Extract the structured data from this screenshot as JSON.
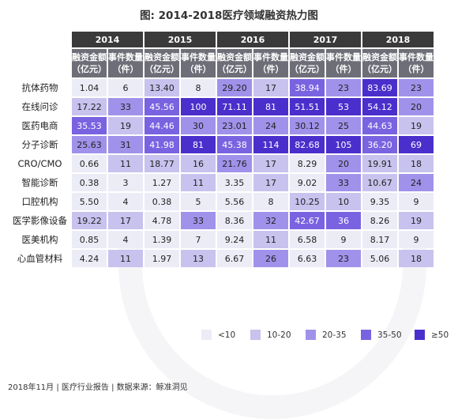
{
  "title": "图: 2014-2018医疗领域融资热力图",
  "footer": "2018年11月 | 医疗行业报告 | 数据来源：鲸准洞见",
  "colors": [
    "#ececf7",
    "#c8c2ee",
    "#a092ea",
    "#7a63e1",
    "#4b2fcc"
  ],
  "legend": [
    {
      "label": "<10",
      "color": "#ececf7"
    },
    {
      "label": "10-20",
      "color": "#c8c2ee"
    },
    {
      "label": "20-35",
      "color": "#a092ea"
    },
    {
      "label": "35-50",
      "color": "#7a63e1"
    },
    {
      "label": "≥50",
      "color": "#4b2fcc"
    }
  ],
  "chart_data": {
    "type": "heatmap",
    "title": "图: 2014-2018医疗领域融资热力图",
    "years": [
      "2014",
      "2015",
      "2016",
      "2017",
      "2018"
    ],
    "metrics": [
      "融资金额（亿元）",
      "事件数量（件）"
    ],
    "column_header_lines": [
      [
        "融资金额",
        "（亿元）"
      ],
      [
        "事件数量",
        "（件）"
      ]
    ],
    "categories": [
      "抗体药物",
      "在线问诊",
      "医药电商",
      "分子诊断",
      "CRO/CMO",
      "智能诊断",
      "口腔机构",
      "医学影像设备",
      "医美机构",
      "心血管材料"
    ],
    "rows": [
      [
        [
          "1.04",
          "6"
        ],
        [
          "13.40",
          "8"
        ],
        [
          "29.20",
          "17"
        ],
        [
          "38.94",
          "23"
        ],
        [
          "83.69",
          "23"
        ]
      ],
      [
        [
          "17.22",
          "33"
        ],
        [
          "45.56",
          "100"
        ],
        [
          "71.11",
          "81"
        ],
        [
          "51.51",
          "53"
        ],
        [
          "54.12",
          "20"
        ]
      ],
      [
        [
          "35.53",
          "19"
        ],
        [
          "44.46",
          "30"
        ],
        [
          "23.01",
          "24"
        ],
        [
          "30.12",
          "25"
        ],
        [
          "44.63",
          "19"
        ]
      ],
      [
        [
          "25.63",
          "31"
        ],
        [
          "41.98",
          "81"
        ],
        [
          "45.38",
          "114"
        ],
        [
          "82.68",
          "105"
        ],
        [
          "36.20",
          "69"
        ]
      ],
      [
        [
          "0.66",
          "11"
        ],
        [
          "18.77",
          "16"
        ],
        [
          "21.76",
          "17"
        ],
        [
          "8.29",
          "20"
        ],
        [
          "19.91",
          "18"
        ]
      ],
      [
        [
          "0.38",
          "3"
        ],
        [
          "1.27",
          "11"
        ],
        [
          "3.35",
          "17"
        ],
        [
          "9.02",
          "33"
        ],
        [
          "10.67",
          "24"
        ]
      ],
      [
        [
          "5.50",
          "4"
        ],
        [
          "0.38",
          "5"
        ],
        [
          "5.56",
          "8"
        ],
        [
          "10.25",
          "10"
        ],
        [
          "9.35",
          "9"
        ]
      ],
      [
        [
          "19.22",
          "17"
        ],
        [
          "4.78",
          "33"
        ],
        [
          "8.36",
          "32"
        ],
        [
          "42.67",
          "36"
        ],
        [
          "8.26",
          "19"
        ]
      ],
      [
        [
          "0.85",
          "4"
        ],
        [
          "1.39",
          "7"
        ],
        [
          "9.24",
          "11"
        ],
        [
          "6.58",
          "9"
        ],
        [
          "8.17",
          "9"
        ]
      ],
      [
        [
          "4.24",
          "11"
        ],
        [
          "1.97",
          "13"
        ],
        [
          "6.67",
          "26"
        ],
        [
          "6.63",
          "23"
        ],
        [
          "5.06",
          "18"
        ]
      ]
    ]
  }
}
